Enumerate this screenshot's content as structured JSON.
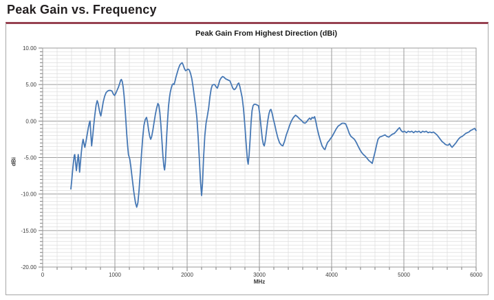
{
  "page": {
    "title": "Peak Gain vs. Frequency"
  },
  "chart_data": {
    "type": "line",
    "title": "Peak Gain From Highest Direction (dBi)",
    "xlabel": "MHz",
    "ylabel": "dBi",
    "xlim": [
      0,
      6000
    ],
    "ylim": [
      -20,
      10
    ],
    "x_minor_step": 200,
    "x_major_step": 1000,
    "y_minor_step": 0.5,
    "y_major_step": 5,
    "grid": true,
    "legend": false,
    "x_ticks": [
      {
        "v": 0,
        "label": "0"
      },
      {
        "v": 1000,
        "label": "1000"
      },
      {
        "v": 2000,
        "label": "2000"
      },
      {
        "v": 3000,
        "label": "3000"
      },
      {
        "v": 4000,
        "label": "4000"
      },
      {
        "v": 5000,
        "label": "5000"
      },
      {
        "v": 6000,
        "label": "6000"
      }
    ],
    "y_ticks": [
      {
        "v": 10,
        "label": "10.00"
      },
      {
        "v": 5,
        "label": "5.00"
      },
      {
        "v": 0,
        "label": "0.00"
      },
      {
        "v": -5,
        "label": "-5.00"
      },
      {
        "v": -10,
        "label": "-10.00"
      },
      {
        "v": -15,
        "label": "-15.00"
      },
      {
        "v": -20,
        "label": "-20.00"
      }
    ],
    "colors": {
      "line": "#4577B4",
      "grid_minor": "#DCDCDC",
      "grid_major": "#9A9A9A",
      "axis": "#777777",
      "tick_text": "#3A3A3A",
      "accent_border": "#96404F",
      "title_text": "#231F20"
    },
    "series": [
      {
        "name": "Peak Gain",
        "points": [
          [
            390,
            -9.3
          ],
          [
            400,
            -8.4
          ],
          [
            412,
            -7.0
          ],
          [
            425,
            -5.8
          ],
          [
            438,
            -4.7
          ],
          [
            445,
            -4.6
          ],
          [
            455,
            -5.6
          ],
          [
            467,
            -6.8
          ],
          [
            480,
            -5.7
          ],
          [
            492,
            -4.6
          ],
          [
            500,
            -5.2
          ],
          [
            511,
            -7.0
          ],
          [
            522,
            -5.8
          ],
          [
            535,
            -4.3
          ],
          [
            548,
            -3.2
          ],
          [
            560,
            -2.5
          ],
          [
            572,
            -3.1
          ],
          [
            584,
            -3.6
          ],
          [
            598,
            -2.9
          ],
          [
            615,
            -1.9
          ],
          [
            632,
            -0.9
          ],
          [
            648,
            -0.2
          ],
          [
            656,
            0.0
          ],
          [
            666,
            -1.6
          ],
          [
            678,
            -3.4
          ],
          [
            690,
            -2.3
          ],
          [
            705,
            -0.8
          ],
          [
            722,
            0.8
          ],
          [
            740,
            2.2
          ],
          [
            755,
            2.8
          ],
          [
            768,
            2.4
          ],
          [
            782,
            1.6
          ],
          [
            795,
            1.0
          ],
          [
            806,
            0.7
          ],
          [
            820,
            1.5
          ],
          [
            838,
            2.6
          ],
          [
            858,
            3.4
          ],
          [
            878,
            3.9
          ],
          [
            898,
            4.1
          ],
          [
            918,
            4.2
          ],
          [
            940,
            4.2
          ],
          [
            960,
            4.1
          ],
          [
            978,
            3.7
          ],
          [
            996,
            3.5
          ],
          [
            1012,
            3.8
          ],
          [
            1030,
            4.2
          ],
          [
            1048,
            4.6
          ],
          [
            1065,
            5.1
          ],
          [
            1080,
            5.6
          ],
          [
            1090,
            5.7
          ],
          [
            1102,
            5.4
          ],
          [
            1115,
            4.6
          ],
          [
            1128,
            3.4
          ],
          [
            1140,
            1.8
          ],
          [
            1152,
            0.0
          ],
          [
            1164,
            -1.8
          ],
          [
            1176,
            -3.4
          ],
          [
            1188,
            -4.6
          ],
          [
            1200,
            -5.0
          ],
          [
            1208,
            -5.3
          ],
          [
            1220,
            -6.2
          ],
          [
            1240,
            -7.9
          ],
          [
            1262,
            -9.7
          ],
          [
            1285,
            -11.2
          ],
          [
            1302,
            -11.8
          ],
          [
            1318,
            -11.2
          ],
          [
            1334,
            -9.5
          ],
          [
            1350,
            -7.2
          ],
          [
            1368,
            -4.6
          ],
          [
            1385,
            -2.3
          ],
          [
            1402,
            -0.6
          ],
          [
            1420,
            0.2
          ],
          [
            1438,
            0.5
          ],
          [
            1452,
            -0.2
          ],
          [
            1468,
            -1.3
          ],
          [
            1482,
            -2.1
          ],
          [
            1495,
            -2.5
          ],
          [
            1508,
            -2.2
          ],
          [
            1525,
            -1.3
          ],
          [
            1542,
            -0.2
          ],
          [
            1560,
            0.9
          ],
          [
            1578,
            1.8
          ],
          [
            1595,
            2.4
          ],
          [
            1608,
            2.2
          ],
          [
            1622,
            1.2
          ],
          [
            1636,
            -0.5
          ],
          [
            1650,
            -2.6
          ],
          [
            1665,
            -4.8
          ],
          [
            1678,
            -6.2
          ],
          [
            1688,
            -6.7
          ],
          [
            1698,
            -5.8
          ],
          [
            1708,
            -3.9
          ],
          [
            1718,
            -1.8
          ],
          [
            1730,
            0.3
          ],
          [
            1742,
            2.0
          ],
          [
            1755,
            3.2
          ],
          [
            1768,
            4.0
          ],
          [
            1782,
            4.6
          ],
          [
            1795,
            5.0
          ],
          [
            1808,
            5.1
          ],
          [
            1818,
            5.0
          ],
          [
            1830,
            5.4
          ],
          [
            1845,
            6.0
          ],
          [
            1862,
            6.6
          ],
          [
            1880,
            7.2
          ],
          [
            1900,
            7.7
          ],
          [
            1918,
            7.9
          ],
          [
            1930,
            8.0
          ],
          [
            1945,
            7.7
          ],
          [
            1962,
            7.2
          ],
          [
            1978,
            6.9
          ],
          [
            1995,
            7.0
          ],
          [
            2012,
            7.1
          ],
          [
            2030,
            7.0
          ],
          [
            2048,
            6.5
          ],
          [
            2065,
            5.8
          ],
          [
            2082,
            4.7
          ],
          [
            2100,
            3.3
          ],
          [
            2118,
            2.0
          ],
          [
            2135,
            0.4
          ],
          [
            2152,
            -2.2
          ],
          [
            2170,
            -5.5
          ],
          [
            2185,
            -8.3
          ],
          [
            2200,
            -10.2
          ],
          [
            2212,
            -8.6
          ],
          [
            2228,
            -5.0
          ],
          [
            2245,
            -2.0
          ],
          [
            2262,
            -0.3
          ],
          [
            2280,
            0.7
          ],
          [
            2298,
            1.8
          ],
          [
            2315,
            3.3
          ],
          [
            2332,
            4.4
          ],
          [
            2348,
            4.9
          ],
          [
            2365,
            5.0
          ],
          [
            2382,
            5.0
          ],
          [
            2400,
            4.7
          ],
          [
            2418,
            4.5
          ],
          [
            2435,
            5.0
          ],
          [
            2452,
            5.6
          ],
          [
            2470,
            5.9
          ],
          [
            2490,
            6.1
          ],
          [
            2510,
            6.0
          ],
          [
            2530,
            5.8
          ],
          [
            2550,
            5.7
          ],
          [
            2572,
            5.6
          ],
          [
            2592,
            5.5
          ],
          [
            2612,
            5.0
          ],
          [
            2632,
            4.5
          ],
          [
            2650,
            4.3
          ],
          [
            2668,
            4.4
          ],
          [
            2685,
            4.7
          ],
          [
            2702,
            5.1
          ],
          [
            2715,
            5.2
          ],
          [
            2730,
            4.7
          ],
          [
            2748,
            3.9
          ],
          [
            2762,
            3.2
          ],
          [
            2780,
            1.7
          ],
          [
            2798,
            -0.5
          ],
          [
            2818,
            -3.3
          ],
          [
            2835,
            -5.4
          ],
          [
            2845,
            -5.9
          ],
          [
            2858,
            -4.6
          ],
          [
            2872,
            -2.4
          ],
          [
            2885,
            -0.2
          ],
          [
            2898,
            1.4
          ],
          [
            2912,
            2.1
          ],
          [
            2928,
            2.3
          ],
          [
            2948,
            2.3
          ],
          [
            2968,
            2.2
          ],
          [
            2988,
            2.1
          ],
          [
            3005,
            1.0
          ],
          [
            3022,
            -0.7
          ],
          [
            3040,
            -2.4
          ],
          [
            3055,
            -3.2
          ],
          [
            3068,
            -3.4
          ],
          [
            3082,
            -2.7
          ],
          [
            3098,
            -1.4
          ],
          [
            3115,
            0.0
          ],
          [
            3132,
            1.0
          ],
          [
            3148,
            1.5
          ],
          [
            3160,
            1.6
          ],
          [
            3175,
            1.1
          ],
          [
            3192,
            0.3
          ],
          [
            3210,
            -0.4
          ],
          [
            3232,
            -1.4
          ],
          [
            3255,
            -2.3
          ],
          [
            3280,
            -3.0
          ],
          [
            3305,
            -3.3
          ],
          [
            3325,
            -3.4
          ],
          [
            3348,
            -2.8
          ],
          [
            3372,
            -1.9
          ],
          [
            3398,
            -1.2
          ],
          [
            3422,
            -0.5
          ],
          [
            3448,
            0.1
          ],
          [
            3472,
            0.5
          ],
          [
            3500,
            0.8
          ],
          [
            3528,
            0.6
          ],
          [
            3555,
            0.3
          ],
          [
            3582,
            0.1
          ],
          [
            3608,
            -0.2
          ],
          [
            3632,
            -0.3
          ],
          [
            3655,
            -0.1
          ],
          [
            3675,
            0.2
          ],
          [
            3695,
            0.4
          ],
          [
            3712,
            0.2
          ],
          [
            3730,
            0.5
          ],
          [
            3748,
            0.4
          ],
          [
            3765,
            0.6
          ],
          [
            3782,
            -0.1
          ],
          [
            3800,
            -1.0
          ],
          [
            3822,
            -1.9
          ],
          [
            3845,
            -2.7
          ],
          [
            3868,
            -3.4
          ],
          [
            3892,
            -3.8
          ],
          [
            3908,
            -3.9
          ],
          [
            3925,
            -3.4
          ],
          [
            3945,
            -2.9
          ],
          [
            3965,
            -2.7
          ],
          [
            3985,
            -2.4
          ],
          [
            4008,
            -2.1
          ],
          [
            4035,
            -1.6
          ],
          [
            4062,
            -1.1
          ],
          [
            4090,
            -0.7
          ],
          [
            4118,
            -0.5
          ],
          [
            4145,
            -0.3
          ],
          [
            4172,
            -0.3
          ],
          [
            4195,
            -0.4
          ],
          [
            4220,
            -1.0
          ],
          [
            4245,
            -1.7
          ],
          [
            4268,
            -2.1
          ],
          [
            4292,
            -2.3
          ],
          [
            4315,
            -2.5
          ],
          [
            4340,
            -2.9
          ],
          [
            4365,
            -3.4
          ],
          [
            4390,
            -3.9
          ],
          [
            4415,
            -4.3
          ],
          [
            4440,
            -4.6
          ],
          [
            4465,
            -4.8
          ],
          [
            4490,
            -5.1
          ],
          [
            4515,
            -5.4
          ],
          [
            4540,
            -5.6
          ],
          [
            4562,
            -5.8
          ],
          [
            4582,
            -5.0
          ],
          [
            4602,
            -4.2
          ],
          [
            4622,
            -3.3
          ],
          [
            4642,
            -2.5
          ],
          [
            4665,
            -2.2
          ],
          [
            4690,
            -2.1
          ],
          [
            4715,
            -2.0
          ],
          [
            4740,
            -1.9
          ],
          [
            4765,
            -2.1
          ],
          [
            4790,
            -2.2
          ],
          [
            4815,
            -2.0
          ],
          [
            4840,
            -1.8
          ],
          [
            4868,
            -1.7
          ],
          [
            4895,
            -1.4
          ],
          [
            4920,
            -1.1
          ],
          [
            4940,
            -0.9
          ],
          [
            4962,
            -1.3
          ],
          [
            4985,
            -1.5
          ],
          [
            5010,
            -1.4
          ],
          [
            5035,
            -1.6
          ],
          [
            5060,
            -1.4
          ],
          [
            5085,
            -1.5
          ],
          [
            5110,
            -1.4
          ],
          [
            5135,
            -1.6
          ],
          [
            5160,
            -1.4
          ],
          [
            5185,
            -1.5
          ],
          [
            5210,
            -1.4
          ],
          [
            5235,
            -1.6
          ],
          [
            5260,
            -1.4
          ],
          [
            5285,
            -1.5
          ],
          [
            5310,
            -1.4
          ],
          [
            5335,
            -1.6
          ],
          [
            5360,
            -1.5
          ],
          [
            5385,
            -1.6
          ],
          [
            5410,
            -1.5
          ],
          [
            5435,
            -1.7
          ],
          [
            5458,
            -1.9
          ],
          [
            5482,
            -2.2
          ],
          [
            5505,
            -2.5
          ],
          [
            5528,
            -2.8
          ],
          [
            5552,
            -3.0
          ],
          [
            5575,
            -3.2
          ],
          [
            5598,
            -3.3
          ],
          [
            5615,
            -3.3
          ],
          [
            5632,
            -3.1
          ],
          [
            5650,
            -3.4
          ],
          [
            5668,
            -3.6
          ],
          [
            5685,
            -3.4
          ],
          [
            5702,
            -3.2
          ],
          [
            5720,
            -3.0
          ],
          [
            5740,
            -2.7
          ],
          [
            5762,
            -2.4
          ],
          [
            5785,
            -2.2
          ],
          [
            5808,
            -2.1
          ],
          [
            5832,
            -1.9
          ],
          [
            5855,
            -1.7
          ],
          [
            5878,
            -1.6
          ],
          [
            5900,
            -1.5
          ],
          [
            5922,
            -1.3
          ],
          [
            5945,
            -1.2
          ],
          [
            5962,
            -1.1
          ],
          [
            5980,
            -1.0
          ],
          [
            6000,
            -1.3
          ]
        ]
      }
    ]
  }
}
